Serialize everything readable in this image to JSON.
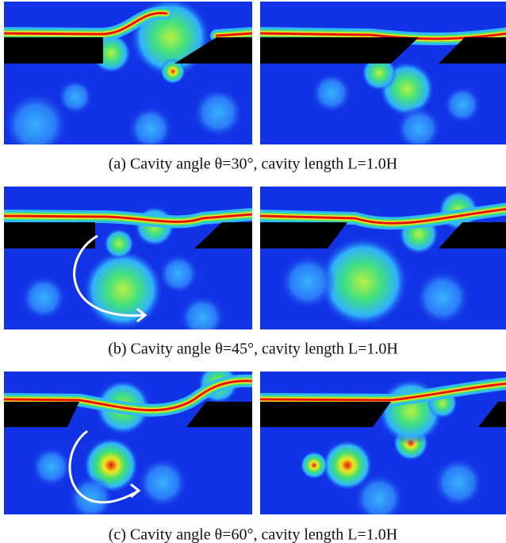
{
  "figure": {
    "captions": [
      "(a) Cavity angle θ=30°, cavity length L=1.0H",
      "(b) Cavity angle θ=45°, cavity length L=1.0H",
      "(c) Cavity angle θ=60°, cavity length L=1.0H"
    ]
  }
}
